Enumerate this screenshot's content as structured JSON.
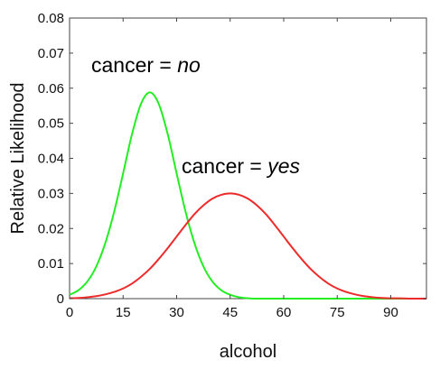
{
  "chart_data": {
    "type": "line",
    "xlabel": "alcohol",
    "ylabel": "Relative Likelihood",
    "xlim": [
      0,
      100
    ],
    "ylim": [
      0,
      0.08
    ],
    "x_ticks": [
      "0",
      "15",
      "30",
      "45",
      "60",
      "75",
      "90"
    ],
    "y_ticks": [
      "0",
      "0.01",
      "0.02",
      "0.03",
      "0.04",
      "0.05",
      "0.06",
      "0.07",
      "0.08"
    ],
    "grid": false,
    "x": [
      0,
      2.5,
      5,
      7.5,
      10,
      12.5,
      15,
      17.5,
      20,
      22.5,
      25,
      27.5,
      30,
      32.5,
      35,
      37.5,
      40,
      42.5,
      45,
      47.5,
      50,
      52.5,
      55,
      57.5,
      60,
      62.5,
      65,
      67.5,
      70,
      72.5,
      75,
      77.5,
      80,
      82.5,
      85,
      87.5,
      90,
      92.5,
      95,
      97.5,
      100
    ],
    "series": [
      {
        "color": "#22ee22",
        "values": [
          0.0011,
          0.0024,
          0.0049,
          0.0092,
          0.0158,
          0.0248,
          0.0357,
          0.0469,
          0.0555,
          0.0588,
          0.0555,
          0.0469,
          0.0357,
          0.0248,
          0.0158,
          0.0092,
          0.0049,
          0.0024,
          0.0011,
          0.0004,
          0.0001,
          0,
          0,
          0,
          0,
          0,
          0,
          0,
          0,
          0,
          0,
          0,
          0,
          0,
          0,
          0,
          0,
          0,
          0,
          0,
          0
        ]
      },
      {
        "color": "#ee2a2a",
        "values": [
          0.0001,
          0.0002,
          0.0004,
          0.0007,
          0.0012,
          0.0019,
          0.0029,
          0.0043,
          0.0062,
          0.0085,
          0.0113,
          0.0144,
          0.0177,
          0.021,
          0.0241,
          0.0266,
          0.0285,
          0.0296,
          0.03,
          0.0296,
          0.0285,
          0.0266,
          0.0241,
          0.021,
          0.0177,
          0.0144,
          0.0113,
          0.0085,
          0.0062,
          0.0043,
          0.0029,
          0.0019,
          0.0012,
          0.0007,
          0.0004,
          0.0002,
          0.0001,
          0.0001,
          0,
          0,
          0
        ]
      }
    ],
    "annotations": [
      {
        "prefix": "cancer = ",
        "value": "no"
      },
      {
        "prefix": "cancer = ",
        "value": "yes"
      }
    ]
  }
}
